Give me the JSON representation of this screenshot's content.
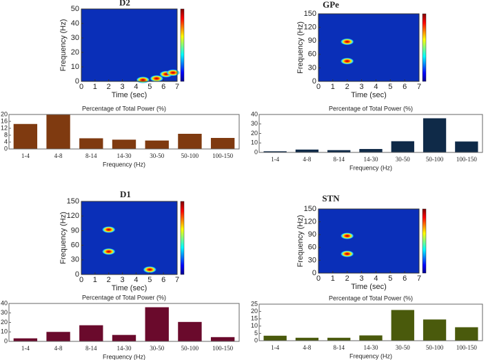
{
  "chart_data": [
    {
      "type": "spectrogram",
      "title": "D2",
      "xlabel": "Time (sec)",
      "ylabel": "Frequency (Hz)",
      "xlim": [
        0,
        7
      ],
      "xticks": [
        0,
        1,
        2,
        3,
        4,
        5,
        6,
        7
      ],
      "ylim": [
        0,
        50
      ],
      "yticks": [
        0,
        10,
        20,
        30,
        40,
        50
      ],
      "hotspots": {
        "x": [
          4.5,
          5.5,
          6.2,
          6.7
        ],
        "y": [
          1,
          2,
          5,
          6
        ]
      }
    },
    {
      "type": "bar",
      "title": "Percentage of Total Power (%)",
      "xlabel": "Frequency (Hz)",
      "categories": [
        "1-4",
        "4-8",
        "8-14",
        "14-30",
        "30-50",
        "50-100",
        "100-150"
      ],
      "values": [
        14.5,
        20,
        6.2,
        5.4,
        4.9,
        8.8,
        6.4
      ],
      "color": "#7f3a10",
      "ylim": [
        0,
        20
      ],
      "yticks": [
        0,
        4,
        8,
        12,
        16,
        20
      ]
    },
    {
      "type": "spectrogram",
      "title": "GPe",
      "xlabel": "Time (sec)",
      "ylabel": "Frequency (Hz)",
      "xlim": [
        0,
        7
      ],
      "xticks": [
        0,
        1,
        2,
        3,
        4,
        5,
        6,
        7
      ],
      "ylim": [
        0,
        150
      ],
      "yticks": [
        0,
        30,
        60,
        90,
        120,
        150
      ],
      "hotspots": {
        "x": [
          2,
          2
        ],
        "y": [
          45,
          88
        ]
      }
    },
    {
      "type": "bar",
      "title": "Percentage of Total Power (%)",
      "xlabel": "Frequency (Hz)",
      "categories": [
        "1-4",
        "4-8",
        "8-14",
        "14-30",
        "30-50",
        "50-100",
        "100-150"
      ],
      "values": [
        1.2,
        3.0,
        2.4,
        3.6,
        11.8,
        36,
        11.5
      ],
      "color": "#0f2a48",
      "ylim": [
        0,
        40
      ],
      "yticks": [
        0,
        10,
        20,
        30,
        40
      ]
    },
    {
      "type": "spectrogram",
      "title": "D1",
      "xlabel": "Time (sec)",
      "ylabel": "Frequency (Hz)",
      "xlim": [
        0,
        7
      ],
      "xticks": [
        0,
        1,
        2,
        3,
        4,
        5,
        6,
        7
      ],
      "ylim": [
        0,
        150
      ],
      "yticks": [
        0,
        30,
        60,
        90,
        120,
        150
      ],
      "hotspots": {
        "x": [
          2,
          2,
          5
        ],
        "y": [
          47,
          92,
          10
        ]
      }
    },
    {
      "type": "bar",
      "title": "Percentage of Total Power (%)",
      "xlabel": "Frequency (Hz)",
      "categories": [
        "1-4",
        "4-8",
        "8-14",
        "14-30",
        "30-50",
        "50-100",
        "100-150"
      ],
      "values": [
        3.2,
        10,
        17,
        6.8,
        36,
        20.5,
        4.5
      ],
      "color": "#6a0a2c",
      "ylim": [
        0,
        40
      ],
      "yticks": [
        0,
        10,
        20,
        30,
        40
      ]
    },
    {
      "type": "spectrogram",
      "title": "STN",
      "xlabel": "Time (sec)",
      "ylabel": "Frequency (Hz)",
      "xlim": [
        0,
        7
      ],
      "xticks": [
        0,
        1,
        2,
        3,
        4,
        5,
        6,
        7
      ],
      "ylim": [
        0,
        150
      ],
      "yticks": [
        0,
        30,
        60,
        90,
        120,
        150
      ],
      "hotspots": {
        "x": [
          2,
          2
        ],
        "y": [
          45,
          87
        ]
      }
    },
    {
      "type": "bar",
      "title": "Percentage of Total Power (%)",
      "xlabel": "Frequency (Hz)",
      "categories": [
        "1-4",
        "4-8",
        "8-14",
        "14-30",
        "30-50",
        "50-100",
        "100-150"
      ],
      "values": [
        3.4,
        2.0,
        2.0,
        3.6,
        21,
        14.5,
        9.2
      ],
      "color": "#4a5a0c",
      "ylim": [
        0,
        25
      ],
      "yticks": [
        0,
        5,
        10,
        15,
        20,
        25
      ]
    }
  ]
}
